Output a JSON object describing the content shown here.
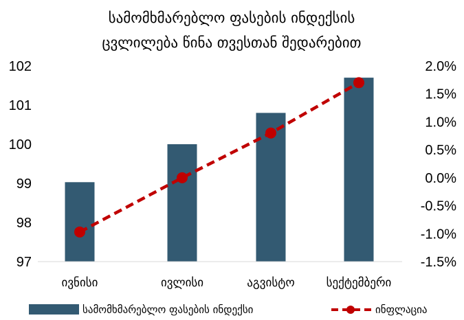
{
  "chart_data": {
    "type": "bar+line",
    "title_lines": [
      "სამომხმარებლო ფასების ინდექსის",
      "ცვლილება წინა თვესთან შედარებით"
    ],
    "categories": [
      "ივნისი",
      "ივლისი",
      "აგვისტო",
      "სექტემბერი"
    ],
    "series": [
      {
        "name": "სამომხმარებლო ფასების ინდექსი",
        "kind": "bar",
        "axis": "left",
        "color": "#335a72",
        "values": [
          99.03,
          100.0,
          100.8,
          101.7
        ]
      },
      {
        "name": "ინფლაცია",
        "kind": "line",
        "axis": "right",
        "color": "#c00000",
        "style": "dashed",
        "marker": "circle",
        "values": [
          -0.97,
          0.0,
          0.8,
          1.7
        ]
      }
    ],
    "left_axis": {
      "ylim": [
        97,
        102
      ],
      "ticks": [
        "97",
        "98",
        "99",
        "100",
        "101",
        "102"
      ]
    },
    "right_axis": {
      "ylim": [
        -1.5,
        2.0
      ],
      "ticks": [
        "-1.5%",
        "-1.0%",
        "-0.5%",
        "0.0%",
        "0.5%",
        "1.0%",
        "1.5%",
        "2.0%"
      ]
    },
    "grid": false,
    "legend_position": "bottom"
  }
}
